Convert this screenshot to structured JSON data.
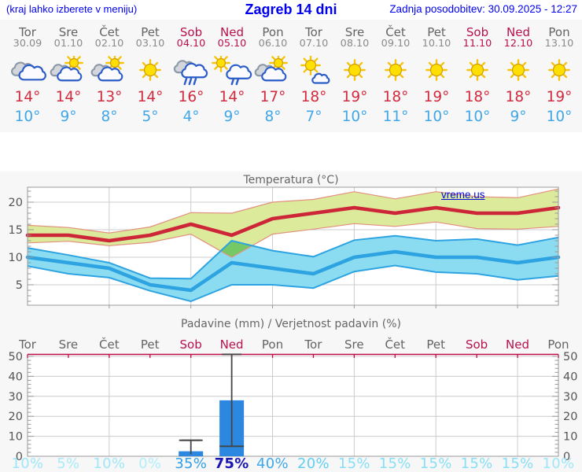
{
  "header": {
    "hint": "(kraj lahko izberete v meniju)",
    "title": "Zagreb 14 dni",
    "updated": "Zadnja posodobitev: 30.09.2025 - 12:27"
  },
  "colors": {
    "accent_blue": "#0000ee",
    "section_bg": "#f7f7f7",
    "weekday_gray": "#636363",
    "weekend_red": "#b8104e",
    "date_gray": "#8a8a8a",
    "tmax_red": "#d22b3f",
    "tmin_blue": "#41a7e8",
    "grid": "#cccccc",
    "plot_border": "#999999",
    "axis_text": "#555555",
    "band_yellow": "#dcea9b",
    "band_yellow_edge": "#e2907e",
    "band_blue": "#8bdcf0",
    "band_blue_edge": "#2ea3e2",
    "line_red": "#cc2638",
    "overlap_green": "#74c966",
    "bar_fill": "#2b87e0",
    "whisker": "#444444",
    "precip_top_border": "#c00a4c",
    "watermark_blue": "#000ae0"
  },
  "days": [
    {
      "name": "Tor",
      "date": "30.09",
      "icon": "cloudy",
      "tmax": "14°",
      "tmin": "10°",
      "weekend": false
    },
    {
      "name": "Sre",
      "date": "01.10",
      "icon": "partly-cloudy",
      "tmax": "14°",
      "tmin": "9°",
      "weekend": false
    },
    {
      "name": "Čet",
      "date": "02.10",
      "icon": "partly-cloudy",
      "tmax": "13°",
      "tmin": "8°",
      "weekend": false
    },
    {
      "name": "Pet",
      "date": "03.10",
      "icon": "sunny",
      "tmax": "14°",
      "tmin": "5°",
      "weekend": false
    },
    {
      "name": "Sob",
      "date": "04.10",
      "icon": "rain",
      "tmax": "16°",
      "tmin": "4°",
      "weekend": true
    },
    {
      "name": "Ned",
      "date": "05.10",
      "icon": "sun-rain",
      "tmax": "14°",
      "tmin": "9°",
      "weekend": true
    },
    {
      "name": "Pon",
      "date": "06.10",
      "icon": "partly-cloudy",
      "tmax": "17°",
      "tmin": "8°",
      "weekend": false
    },
    {
      "name": "Tor",
      "date": "07.10",
      "icon": "mostly-sunny",
      "tmax": "18°",
      "tmin": "7°",
      "weekend": false
    },
    {
      "name": "Sre",
      "date": "08.10",
      "icon": "sunny",
      "tmax": "19°",
      "tmin": "10°",
      "weekend": false
    },
    {
      "name": "Čet",
      "date": "09.10",
      "icon": "sunny",
      "tmax": "18°",
      "tmin": "11°",
      "weekend": false
    },
    {
      "name": "Pet",
      "date": "10.10",
      "icon": "sunny",
      "tmax": "19°",
      "tmin": "10°",
      "weekend": false
    },
    {
      "name": "Sob",
      "date": "11.10",
      "icon": "sunny",
      "tmax": "18°",
      "tmin": "10°",
      "weekend": true
    },
    {
      "name": "Ned",
      "date": "12.10",
      "icon": "sunny",
      "tmax": "18°",
      "tmin": "9°",
      "weekend": true
    },
    {
      "name": "Pon",
      "date": "13.10",
      "icon": "sunny",
      "tmax": "19°",
      "tmin": "10°",
      "weekend": false
    }
  ],
  "chart_data": [
    {
      "type": "area",
      "title": "Temperatura (°C)",
      "watermark": "vreme.us",
      "ylim": [
        1.3,
        22.7
      ],
      "yticks": [
        5,
        10,
        15,
        20
      ],
      "grid_days": [
        2,
        4,
        6,
        8,
        10,
        12
      ],
      "series": [
        {
          "name": "max-temp",
          "values": [
            14,
            14,
            13,
            14,
            16,
            14,
            17,
            18,
            19,
            18,
            19,
            18,
            18,
            19
          ]
        },
        {
          "name": "max-temp-range-upper",
          "values": [
            15.8,
            15.4,
            14.4,
            15.5,
            18.1,
            18.0,
            20.0,
            20.5,
            21.9,
            20.6,
            21.9,
            21.0,
            20.8,
            22.4
          ]
        },
        {
          "name": "max-temp-range-lower",
          "values": [
            12.6,
            12.9,
            12.1,
            12.7,
            14.2,
            10.0,
            14.2,
            15.1,
            16.1,
            15.6,
            16.4,
            15.2,
            15.1,
            15.6
          ]
        },
        {
          "name": "min-temp",
          "values": [
            10,
            9,
            8,
            5,
            4,
            9,
            8,
            7,
            10,
            11,
            10,
            10,
            9,
            10
          ]
        },
        {
          "name": "min-temp-range-upper",
          "values": [
            11.7,
            10.4,
            9.0,
            6.2,
            6.1,
            13.0,
            11.2,
            10.1,
            13.1,
            13.9,
            13.0,
            13.3,
            12.2,
            13.6
          ]
        },
        {
          "name": "min-temp-range-lower",
          "values": [
            8.4,
            7.0,
            6.3,
            3.9,
            2.0,
            5.0,
            5.0,
            4.4,
            7.4,
            8.5,
            7.3,
            7.0,
            5.9,
            6.6
          ]
        }
      ]
    },
    {
      "type": "bar",
      "title": "Padavine (mm) / Verjetnost padavin (%)",
      "categories": [
        "Tor",
        "Sre",
        "Čet",
        "Pet",
        "Sob",
        "Ned",
        "Pon",
        "Tor",
        "Sre",
        "Čet",
        "Pet",
        "Sob",
        "Ned",
        "Pon"
      ],
      "values": [
        0,
        0,
        0,
        0,
        2.5,
        28,
        0,
        0,
        0,
        0,
        0,
        0,
        0,
        0
      ],
      "whiskers": [
        null,
        null,
        null,
        null,
        {
          "lo": 1,
          "hi": 8,
          "lo_cap": false
        },
        {
          "lo": 5,
          "hi": 51,
          "lo_cap": true
        },
        null,
        null,
        null,
        null,
        null,
        null,
        null,
        null
      ],
      "probabilities": [
        "10%",
        "5%",
        "10%",
        "0%",
        "35%",
        "75%",
        "40%",
        "20%",
        "15%",
        "15%",
        "15%",
        "15%",
        "15%",
        "10%"
      ],
      "prob_colors": [
        "#9fe7f8",
        "#a8ebf9",
        "#9fe7f8",
        "#b2edfa",
        "#2f9fe8",
        "#1a18b4",
        "#3da8ec",
        "#62cef2",
        "#86dff6",
        "#86dff6",
        "#86dff6",
        "#86dff6",
        "#86dff6",
        "#9fe7f8"
      ],
      "prob_bold": [
        false,
        false,
        false,
        false,
        false,
        true,
        false,
        false,
        false,
        false,
        false,
        false,
        false,
        false
      ],
      "ylim": [
        0,
        51
      ],
      "yticks": [
        0,
        10,
        20,
        30,
        40,
        50
      ]
    }
  ]
}
